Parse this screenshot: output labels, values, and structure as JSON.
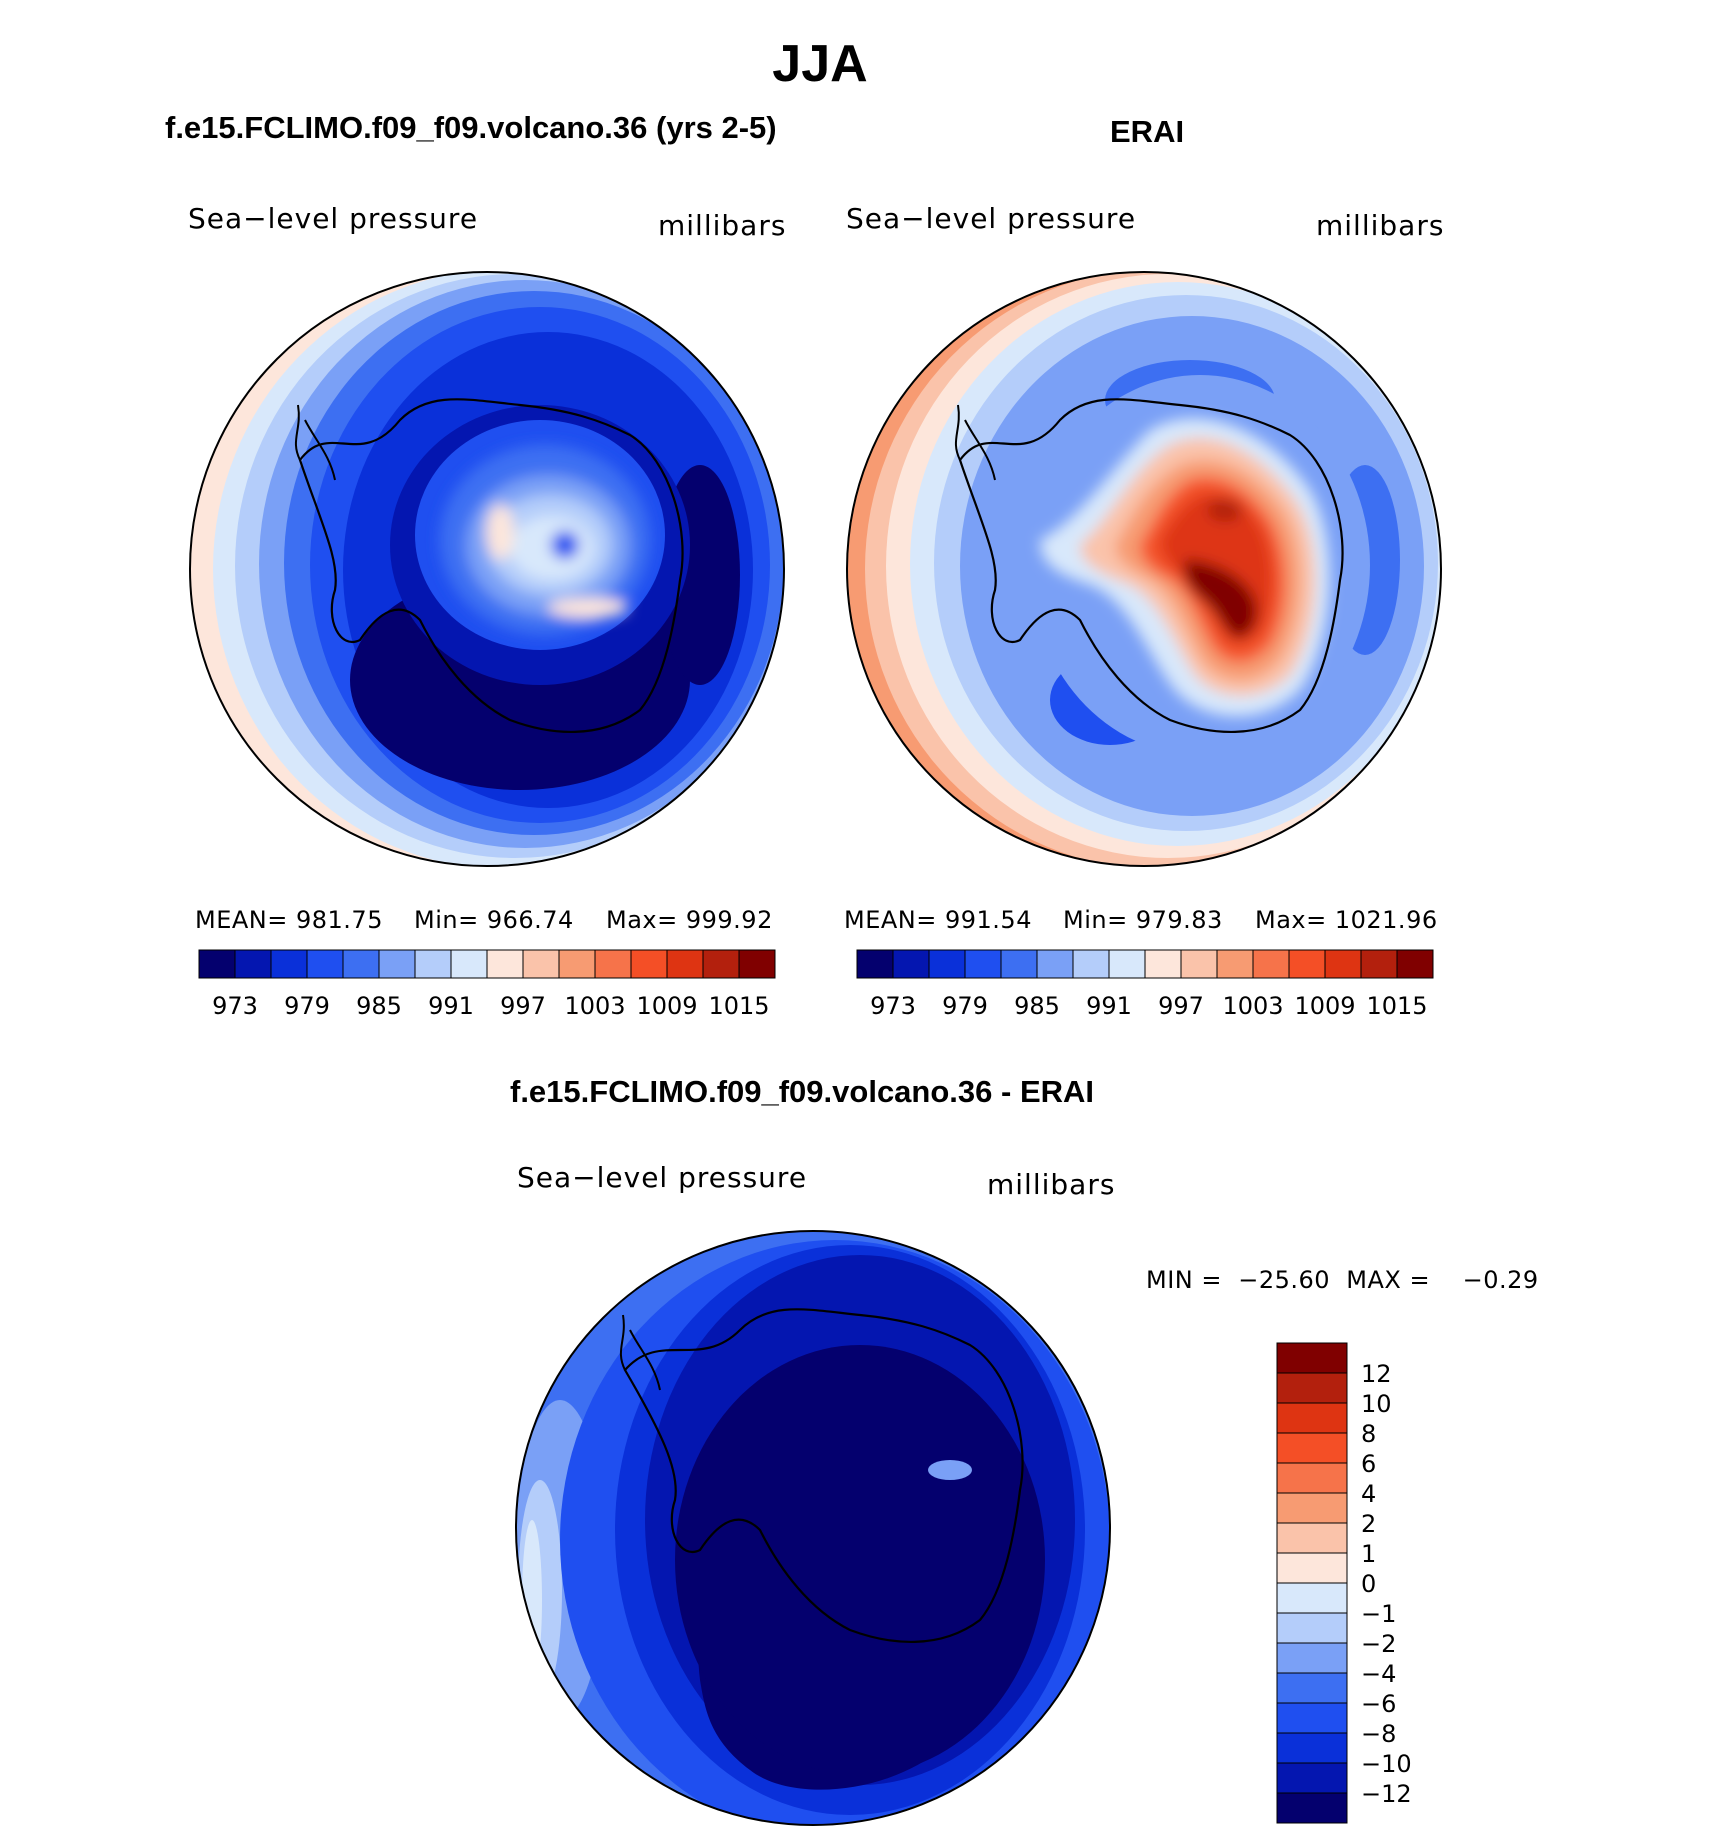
{
  "title": "JJA",
  "palette": [
    "#04006e",
    "#0416b0",
    "#0a30d9",
    "#1f4ff0",
    "#3d6ff2",
    "#7aa0f6",
    "#b4cdfa",
    "#d8e8fb",
    "#fde6db",
    "#fac3aa",
    "#f79b72",
    "#f6734a",
    "#f44f26",
    "#de3412",
    "#b3200d",
    "#800000"
  ],
  "panels": {
    "model": {
      "title": "f.e15.FCLIMO.f09_f09.volcano.36 (yrs 2-5)",
      "variable": "Sea−level pressure",
      "units": "millibars",
      "stats": {
        "mean": "MEAN=  981.75",
        "min": "Min=  966.74",
        "max": "Max=  999.92"
      },
      "colorbar_ticks": [
        "973",
        "979",
        "985",
        "991",
        "997",
        "1003",
        "1009",
        "1015"
      ]
    },
    "obs": {
      "title": "ERAI",
      "variable": "Sea−level pressure",
      "units": "millibars",
      "stats": {
        "mean": "MEAN=  991.54",
        "min": "Min=  979.83",
        "max": "Max=  1021.96"
      },
      "colorbar_ticks": [
        "973",
        "979",
        "985",
        "991",
        "997",
        "1003",
        "1009",
        "1015"
      ]
    },
    "diff": {
      "title": "f.e15.FCLIMO.f09_f09.volcano.36 - ERAI",
      "variable": "Sea−level pressure",
      "units": "millibars",
      "minmax": "MIN =  −25.60  MAX =    −0.29",
      "colorbar_ticks": [
        "12",
        "10",
        "8",
        "6",
        "4",
        "2",
        "1",
        "0",
        "−1",
        "−2",
        "−4",
        "−6",
        "−8",
        "−10",
        "−12"
      ]
    }
  }
}
